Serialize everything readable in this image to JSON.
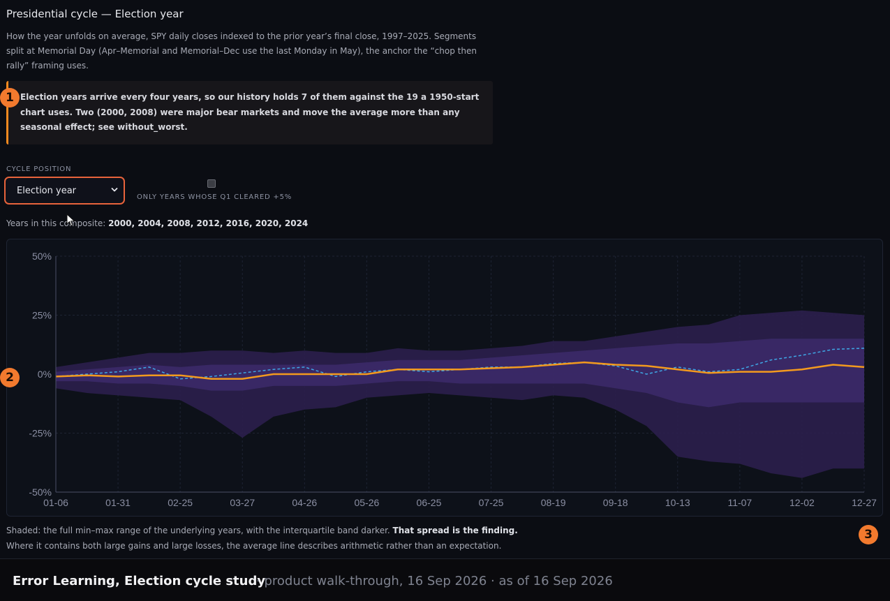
{
  "page": {
    "title": "Presidential cycle — Election year",
    "description": "How the year unfolds on average, SPY daily closes indexed to the prior year’s final close, 1997–2025. Segments split at Memorial Day (Apr–Memorial and Memorial–Dec use the last Monday in May), the anchor the “chop then rally” framing uses.",
    "callout": "Election years arrive every four years, so our history holds 7 of them against the 19 a 1950-start chart uses. Two (2000, 2008) were major bear markets and move the average more than any seasonal effect; see without_worst."
  },
  "markers": [
    "1",
    "2",
    "3"
  ],
  "controls": {
    "cycle_label": "CYCLE POSITION",
    "cycle_value": "Election year",
    "cycle_options": [
      "Election year"
    ],
    "filter_label": "ONLY YEARS WHOSE Q1 CLEARED +5%",
    "filter_checked": false
  },
  "years_prefix": "Years in this composite: ",
  "years_list": "2000, 2004, 2008, 2012, 2016, 2020, 2024",
  "colors": {
    "average_line": "#f39a1e",
    "dashed_line": "#3fa7e6",
    "range_band": "#2b1f4d",
    "iqr_band": "#3b2a68",
    "accent": "#f27a2e"
  },
  "chart_data": {
    "type": "area",
    "x_ticks": [
      "01-06",
      "01-31",
      "02-25",
      "03-27",
      "04-26",
      "05-26",
      "06-25",
      "07-25",
      "08-19",
      "09-18",
      "10-13",
      "11-07",
      "12-02",
      "12-27"
    ],
    "y_ticks": [
      "50%",
      "25%",
      "0%",
      "-25%",
      "-50%"
    ],
    "ylim": [
      -50,
      50
    ],
    "grid": true,
    "x": [
      "01-06",
      "01-18",
      "01-31",
      "02-12",
      "02-25",
      "03-10",
      "03-27",
      "04-10",
      "04-26",
      "05-12",
      "05-26",
      "06-10",
      "06-25",
      "07-10",
      "07-25",
      "08-07",
      "08-19",
      "09-03",
      "09-18",
      "10-01",
      "10-13",
      "10-25",
      "11-07",
      "11-20",
      "12-02",
      "12-15",
      "12-27"
    ],
    "series": [
      {
        "values": [
          -1,
          -0.5,
          -1,
          -0.5,
          -0.5,
          -2,
          -2,
          0,
          0,
          0,
          0,
          2,
          2,
          2,
          2.5,
          3,
          4,
          5,
          4,
          3.5,
          2,
          0.5,
          1,
          1,
          2,
          4,
          3
        ]
      },
      {
        "values": [
          -1,
          0,
          1,
          3,
          -2,
          -1,
          0.5,
          2,
          3,
          -1,
          1,
          2,
          1,
          2,
          3,
          3,
          4.5,
          5,
          3.5,
          0,
          3,
          1,
          2,
          6,
          8,
          10.5,
          11
        ]
      },
      {
        "values": [
          -6,
          -8,
          -9,
          -10,
          -11,
          -18,
          -27,
          -18,
          -15,
          -14,
          -10,
          -9,
          -8,
          -9,
          -10,
          -11,
          -9,
          -10,
          -15,
          -22,
          -35,
          -37,
          -38,
          -42,
          -44,
          -40,
          -40
        ]
      },
      {
        "values": [
          3,
          5,
          7,
          9,
          9,
          10,
          10,
          9,
          10,
          9,
          9,
          11,
          10,
          10,
          11,
          12,
          14,
          14,
          16,
          18,
          20,
          21,
          25,
          26,
          27,
          26,
          25
        ]
      },
      {
        "values": [
          -3,
          -3,
          -4,
          -4,
          -5,
          -7,
          -7,
          -5,
          -5,
          -5,
          -4,
          -3,
          -3,
          -4,
          -4,
          -4,
          -4,
          -4,
          -6,
          -8,
          -12,
          -14,
          -12,
          -12,
          -12,
          -12,
          -12
        ]
      },
      {
        "values": [
          1,
          2,
          3,
          4,
          3,
          4,
          4,
          4,
          4,
          4,
          5,
          6,
          6,
          6,
          7,
          8,
          9,
          10,
          11,
          12,
          13,
          13,
          14,
          15,
          15,
          15,
          15
        ]
      }
    ]
  },
  "footnote": {
    "part1": "Shaded: the full min–max range of the underlying years, with the interquartile band darker. ",
    "bold": "That spread is the finding.",
    "part2": "Where it contains both large gains and large losses, the average line describes arithmetic rather than an expectation."
  },
  "footer": {
    "brand": "Error Learning, Election cycle study",
    "meta": "· product walk-through, 16 Sep 2026 · as of 16 Sep 2026"
  }
}
